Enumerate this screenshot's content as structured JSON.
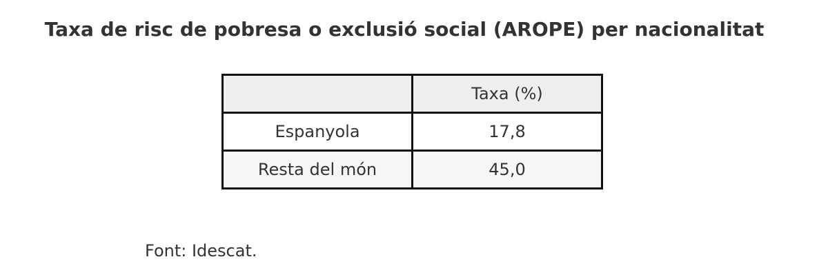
{
  "title": "Taxa de risc de pobresa o exclusió social (AROPE) per nacionalitat",
  "table": {
    "columns": [
      "Taxa (%)"
    ],
    "rows": [
      [
        "Espanyola",
        "17,8"
      ],
      [
        "Resta del món",
        "45,0"
      ]
    ]
  },
  "footer": "Font: Idescat."
}
